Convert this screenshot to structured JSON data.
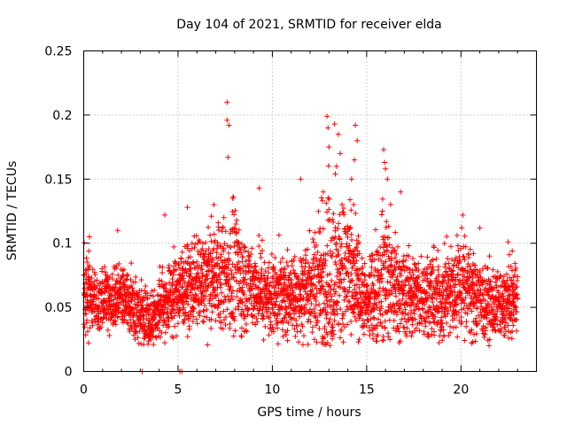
{
  "chart_data": {
    "type": "scatter",
    "title": "Day 104 of 2021, SRMTID for receiver elda",
    "xlabel": "GPS time / hours",
    "ylabel": "SRMTID / TECUs",
    "xlim": [
      0,
      24
    ],
    "ylim": [
      0,
      0.25
    ],
    "xticks": [
      0,
      5,
      10,
      15,
      20
    ],
    "xtick_labels": [
      "0",
      "5",
      "10",
      "15",
      "20"
    ],
    "yticks": [
      0,
      0.05,
      0.1,
      0.15,
      0.2,
      0.25
    ],
    "ytick_labels": [
      "0",
      "0.05",
      "0.1",
      "0.15",
      "0.2",
      "0.25"
    ],
    "grid": true,
    "marker": "+",
    "color": "#ff0000",
    "series": [
      {
        "name": "SRMTID",
        "x_range": [
          0,
          23
        ],
        "sampling_interval_hours": 0.0167,
        "profile_hours": [
          0,
          1,
          2,
          3,
          3.5,
          4,
          5,
          6,
          7,
          8,
          9,
          10,
          11,
          12,
          13,
          14,
          15,
          16,
          17,
          18,
          19,
          20,
          21,
          22,
          23
        ],
        "profile_median": [
          0.06,
          0.055,
          0.06,
          0.045,
          0.04,
          0.05,
          0.065,
          0.07,
          0.075,
          0.075,
          0.065,
          0.06,
          0.06,
          0.065,
          0.075,
          0.08,
          0.05,
          0.075,
          0.06,
          0.06,
          0.055,
          0.07,
          0.055,
          0.05,
          0.06
        ],
        "profile_spread": [
          0.02,
          0.015,
          0.015,
          0.015,
          0.012,
          0.015,
          0.02,
          0.02,
          0.025,
          0.03,
          0.02,
          0.02,
          0.02,
          0.025,
          0.04,
          0.035,
          0.015,
          0.035,
          0.02,
          0.02,
          0.02,
          0.025,
          0.02,
          0.015,
          0.02
        ],
        "peaks": [
          {
            "x": 7.6,
            "y": 0.21
          },
          {
            "x": 7.6,
            "y": 0.196
          },
          {
            "x": 7.7,
            "y": 0.192
          },
          {
            "x": 7.65,
            "y": 0.167
          },
          {
            "x": 9.3,
            "y": 0.143
          },
          {
            "x": 12.9,
            "y": 0.199
          },
          {
            "x": 12.95,
            "y": 0.19
          },
          {
            "x": 13.3,
            "y": 0.193
          },
          {
            "x": 13.5,
            "y": 0.185
          },
          {
            "x": 14.4,
            "y": 0.192
          },
          {
            "x": 14.5,
            "y": 0.18
          },
          {
            "x": 14.35,
            "y": 0.165
          },
          {
            "x": 13.0,
            "y": 0.175
          },
          {
            "x": 13.6,
            "y": 0.17
          },
          {
            "x": 15.9,
            "y": 0.173
          },
          {
            "x": 15.95,
            "y": 0.163
          },
          {
            "x": 16.0,
            "y": 0.158
          },
          {
            "x": 16.1,
            "y": 0.15
          },
          {
            "x": 16.8,
            "y": 0.14
          },
          {
            "x": 13.4,
            "y": 0.16
          },
          {
            "x": 12.7,
            "y": 0.14
          },
          {
            "x": 14.2,
            "y": 0.15
          },
          {
            "x": 7.9,
            "y": 0.135
          },
          {
            "x": 6.9,
            "y": 0.13
          },
          {
            "x": 5.5,
            "y": 0.128
          },
          {
            "x": 4.3,
            "y": 0.122
          },
          {
            "x": 0.3,
            "y": 0.105
          },
          {
            "x": 1.8,
            "y": 0.11
          },
          {
            "x": 11.5,
            "y": 0.15
          },
          {
            "x": 20.1,
            "y": 0.122
          },
          {
            "x": 21.0,
            "y": 0.112
          },
          {
            "x": 22.5,
            "y": 0.101
          }
        ],
        "zero_points": [
          {
            "x": 3.1,
            "y": 0
          },
          {
            "x": 5.1,
            "y": 0
          },
          {
            "x": 5.2,
            "y": 0
          }
        ]
      }
    ]
  }
}
